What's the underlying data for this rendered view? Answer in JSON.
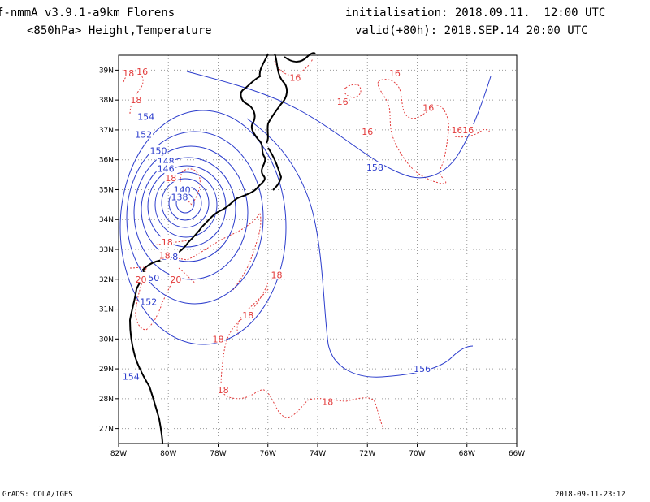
{
  "header": {
    "model": "f-nmmA_v3.9.1-a9km_Florens",
    "level": "<850hPa> Height,Temperature",
    "init": "initialisation: 2018.09.11.  12:00 UTC",
    "valid": "valid(+80h): 2018.SEP.14 20:00 UTC"
  },
  "footer": {
    "left": "GrADS: COLA/IGES",
    "right": "2018-09-11-23:12"
  },
  "map": {
    "lon_range": [
      -82,
      -66
    ],
    "lat_range": [
      26.5,
      39.5
    ],
    "x_ticks": [
      {
        "lon": -82,
        "label": "82W"
      },
      {
        "lon": -80,
        "label": "80W"
      },
      {
        "lon": -78,
        "label": "78W"
      },
      {
        "lon": -76,
        "label": "76W"
      },
      {
        "lon": -74,
        "label": "74W"
      },
      {
        "lon": -72,
        "label": "72W"
      },
      {
        "lon": -70,
        "label": "70W"
      },
      {
        "lon": -68,
        "label": "68W"
      },
      {
        "lon": -66,
        "label": "66W"
      }
    ],
    "y_ticks": [
      {
        "lat": 27,
        "label": "27N"
      },
      {
        "lat": 28,
        "label": "28N"
      },
      {
        "lat": 29,
        "label": "29N"
      },
      {
        "lat": 30,
        "label": "30N"
      },
      {
        "lat": 31,
        "label": "31N"
      },
      {
        "lat": 32,
        "label": "32N"
      },
      {
        "lat": 33,
        "label": "33N"
      },
      {
        "lat": 34,
        "label": "34N"
      },
      {
        "lat": 35,
        "label": "35N"
      },
      {
        "lat": 36,
        "label": "36N"
      },
      {
        "lat": 37,
        "label": "37N"
      },
      {
        "lat": 38,
        "label": "38N"
      },
      {
        "lat": 39,
        "label": "39N"
      }
    ],
    "grid": true,
    "height_color": "#2b3ccc",
    "temp_color": "#e23a3a",
    "coast_color": "#000000",
    "center": {
      "lon": -79.3,
      "lat": 34.7
    },
    "height_labels": [
      {
        "text": "154",
        "lon": -80.9,
        "lat": 37.45
      },
      {
        "text": "152",
        "lon": -81.0,
        "lat": 36.85
      },
      {
        "text": "150",
        "lon": -80.4,
        "lat": 36.3
      },
      {
        "text": "148",
        "lon": -80.1,
        "lat": 35.95
      },
      {
        "text": "146",
        "lon": -80.1,
        "lat": 35.7
      },
      {
        "text": "140",
        "lon": -79.45,
        "lat": 35.0
      },
      {
        "text": "138",
        "lon": -79.55,
        "lat": 34.75
      },
      {
        "text": "148",
        "lon": -79.95,
        "lat": 32.75
      },
      {
        "text": "150",
        "lon": -80.7,
        "lat": 32.05
      },
      {
        "text": "152",
        "lon": -80.8,
        "lat": 31.25
      },
      {
        "text": "154",
        "lon": -81.5,
        "lat": 28.75
      },
      {
        "text": "156",
        "lon": -69.8,
        "lat": 29.0
      },
      {
        "text": "158",
        "lon": -71.7,
        "lat": 35.75
      }
    ],
    "temp_labels": [
      {
        "text": "18",
        "lon": -81.6,
        "lat": 38.9
      },
      {
        "text": "16",
        "lon": -81.05,
        "lat": 38.95
      },
      {
        "text": "18",
        "lon": -81.3,
        "lat": 38.0
      },
      {
        "text": "16",
        "lon": -74.9,
        "lat": 38.75
      },
      {
        "text": "16",
        "lon": -70.9,
        "lat": 38.9
      },
      {
        "text": "16",
        "lon": -73.0,
        "lat": 37.95
      },
      {
        "text": "16",
        "lon": -69.55,
        "lat": 37.75
      },
      {
        "text": "16",
        "lon": -72.0,
        "lat": 36.95
      },
      {
        "text": "16",
        "lon": -68.4,
        "lat": 37.0
      },
      {
        "text": "16",
        "lon": -67.95,
        "lat": 37.0
      },
      {
        "text": "18",
        "lon": -79.9,
        "lat": 35.4
      },
      {
        "text": "18",
        "lon": -80.05,
        "lat": 33.25
      },
      {
        "text": "18",
        "lon": -80.15,
        "lat": 32.8
      },
      {
        "text": "20",
        "lon": -81.1,
        "lat": 32.0
      },
      {
        "text": "20",
        "lon": -79.7,
        "lat": 32.0
      },
      {
        "text": "18",
        "lon": -75.65,
        "lat": 32.15
      },
      {
        "text": "18",
        "lon": -76.8,
        "lat": 30.8
      },
      {
        "text": "18",
        "lon": -78.0,
        "lat": 30.0
      },
      {
        "text": "18",
        "lon": -77.8,
        "lat": 28.3
      },
      {
        "text": "18",
        "lon": -73.6,
        "lat": 27.9
      }
    ]
  }
}
